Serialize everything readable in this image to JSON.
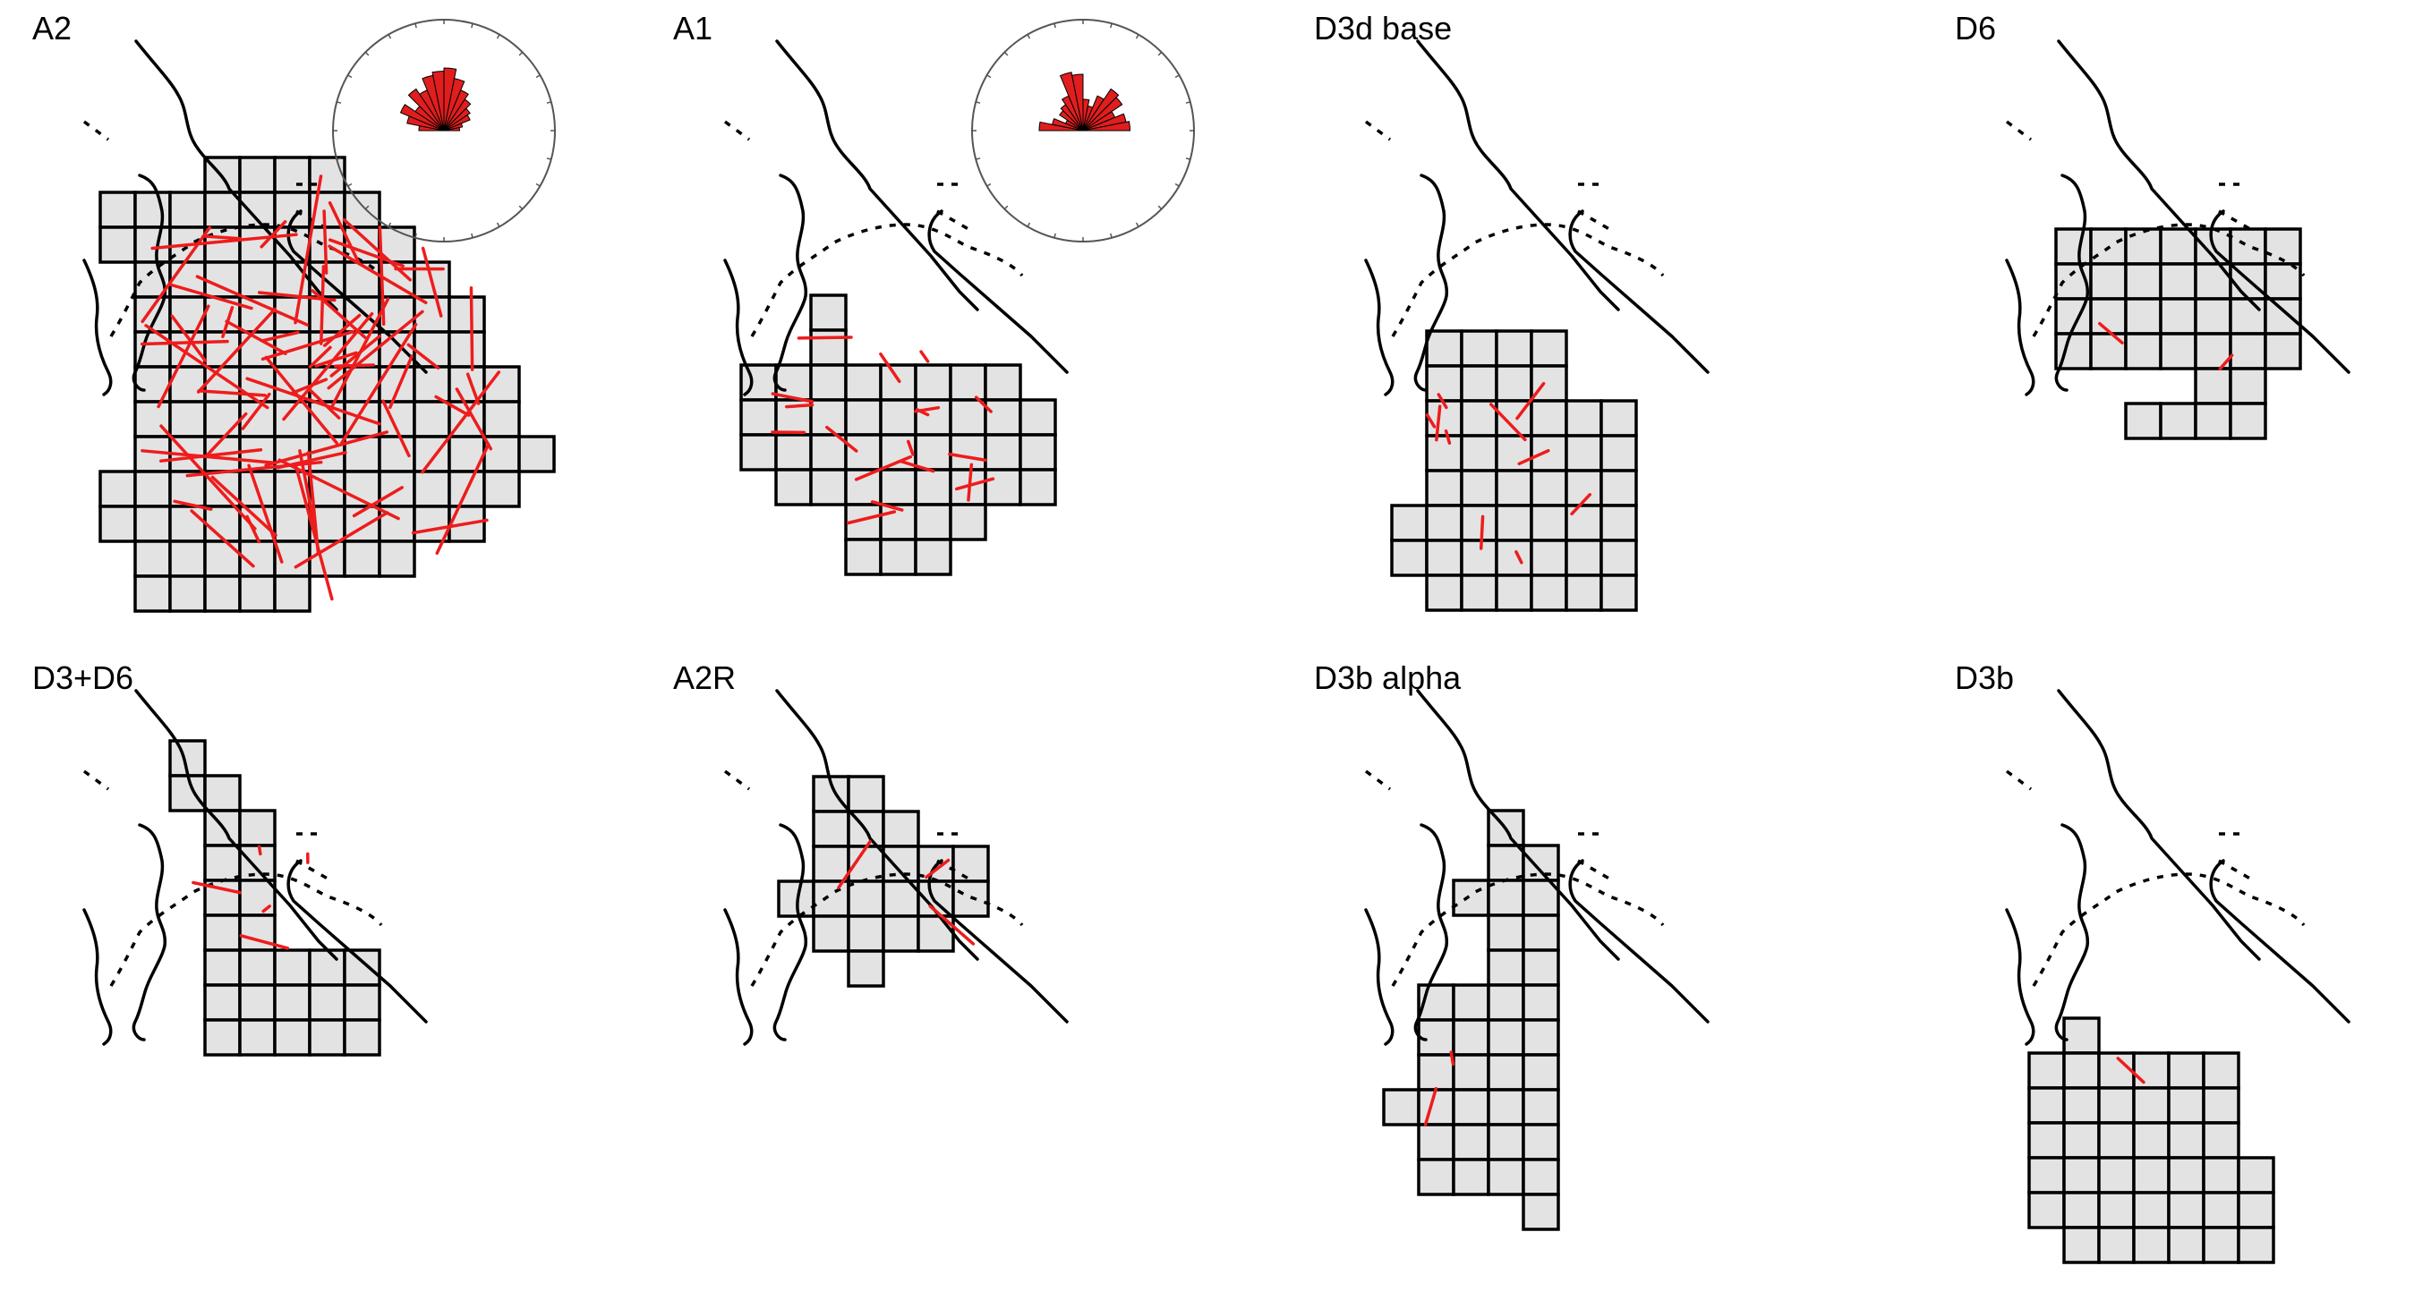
{
  "figure": {
    "panels": [
      {
        "id": "A2",
        "title": "A2",
        "grid": [
          [
            3,
            4
          ],
          [
            3,
            5
          ],
          [
            4,
            5
          ],
          [
            4,
            6
          ],
          [
            5,
            6
          ],
          [
            5,
            7
          ],
          [
            6,
            7
          ],
          [
            6,
            8
          ],
          [
            7,
            8
          ],
          [
            7,
            9
          ],
          [
            8,
            9
          ],
          [
            8,
            10
          ],
          [
            9,
            10
          ],
          [
            9,
            11
          ],
          [
            10,
            12
          ],
          [
            11,
            12
          ],
          [
            12,
            12
          ],
          [
            13,
            12
          ],
          [
            14,
            10
          ],
          [
            15,
            10
          ],
          [
            16,
            9
          ],
          [
            17,
            8
          ]
        ],
        "rose": [
          [
            180,
            0.4
          ],
          [
            167,
            0.6
          ],
          [
            155,
            0.75
          ],
          [
            143,
            0.55
          ],
          [
            131,
            0.8
          ],
          [
            119,
            0.7
          ],
          [
            107,
            0.9
          ],
          [
            95,
            0.95
          ],
          [
            83,
            1.0
          ],
          [
            71,
            0.85
          ],
          [
            59,
            0.7
          ],
          [
            47,
            0.6
          ],
          [
            35,
            0.5
          ],
          [
            23,
            0.45
          ],
          [
            11,
            0.3
          ],
          [
            0,
            0.25
          ]
        ],
        "tracks": 70
      },
      {
        "id": "A1",
        "title": "A1",
        "grid": [
          [
            6,
            7
          ],
          [
            7,
            13
          ],
          [
            8,
            13
          ],
          [
            9,
            12
          ]
        ],
        "rose": [
          [
            180,
            0.7
          ],
          [
            167,
            0.5
          ],
          [
            155,
            0.3
          ],
          [
            143,
            0.45
          ],
          [
            131,
            0.5
          ],
          [
            119,
            0.6
          ],
          [
            107,
            0.95
          ],
          [
            95,
            0.9
          ],
          [
            83,
            0.5
          ],
          [
            71,
            0.4
          ],
          [
            59,
            0.6
          ],
          [
            47,
            0.8
          ],
          [
            35,
            0.75
          ],
          [
            23,
            0.55
          ],
          [
            11,
            0.7
          ],
          [
            0,
            0.75
          ]
        ],
        "tracks": 18
      },
      {
        "id": "D3d base",
        "title": "D3d base",
        "grid": [
          [
            7,
            11
          ],
          [
            8,
            12
          ],
          [
            9,
            12
          ],
          [
            10,
            12
          ],
          [
            11,
            12
          ],
          [
            12,
            12
          ],
          [
            13,
            12
          ],
          [
            14,
            12
          ]
        ],
        "tracks": 10
      },
      {
        "id": "D6",
        "title": "D6",
        "grid": [
          [
            3,
            10
          ],
          [
            4,
            10
          ],
          [
            5,
            10
          ],
          [
            6,
            10
          ],
          [
            7,
            11
          ]
        ],
        "tracks": 2
      },
      {
        "id": "D3+D6",
        "title": "D3+D6",
        "grid": [
          [
            0,
            2
          ],
          [
            1,
            2
          ],
          [
            2,
            3
          ],
          [
            3,
            4
          ],
          [
            4,
            11
          ],
          [
            5,
            11
          ],
          [
            6,
            11
          ]
        ],
        "tracks": 5
      },
      {
        "id": "A2R",
        "title": "A2R",
        "grid": [
          [
            1,
            7
          ],
          [
            2,
            7
          ],
          [
            3,
            8
          ],
          [
            4,
            7
          ],
          [
            5,
            7
          ],
          [
            6,
            7
          ]
        ],
        "tracks": 3
      },
      {
        "id": "D3b alpha",
        "title": "D3b alpha",
        "grid": [
          [
            3,
            4
          ],
          [
            4,
            5
          ],
          [
            5,
            6
          ],
          [
            6,
            6
          ],
          [
            7,
            6
          ],
          [
            8,
            6
          ],
          [
            9,
            6
          ],
          [
            10,
            6
          ],
          [
            11,
            6
          ],
          [
            12,
            6
          ],
          [
            13,
            6
          ],
          [
            14,
            6
          ],
          [
            15,
            6
          ]
        ],
        "tracks": 2
      },
      {
        "id": "D3b",
        "title": "D3b",
        "grid": [
          [
            10,
            11
          ],
          [
            11,
            11
          ],
          [
            12,
            11
          ],
          [
            13,
            11
          ],
          [
            14,
            11
          ],
          [
            15,
            11
          ],
          [
            16,
            11
          ]
        ],
        "tracks": 1
      }
    ]
  }
}
